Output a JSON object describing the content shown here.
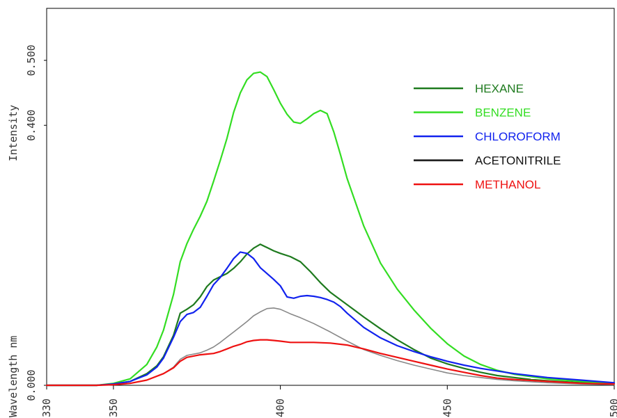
{
  "chart_data": {
    "type": "line",
    "title": "",
    "xlabel": "Wavelength nm",
    "ylabel": "Intensity",
    "xlim": [
      330,
      500
    ],
    "ylim": [
      0.0,
      0.58
    ],
    "x_ticks": [
      330,
      350,
      400,
      450,
      500
    ],
    "y_ticks": [
      0.0,
      0.4,
      0.5
    ],
    "x_tick_labels": [
      "330",
      "350",
      "400",
      "450",
      "500"
    ],
    "y_tick_labels": [
      "0.000",
      "0.400",
      "0.500"
    ],
    "grid": false,
    "legend_position": "top-right",
    "series": [
      {
        "name": "HEXANE",
        "color": "#1e7a1e",
        "x": [
          330,
          345,
          350,
          355,
          360,
          363,
          365,
          368,
          370,
          372,
          374,
          376,
          378,
          380,
          382,
          384,
          386,
          388,
          390,
          392,
          394,
          396,
          398,
          400,
          403,
          406,
          409,
          412,
          415,
          420,
          425,
          430,
          435,
          440,
          445,
          450,
          455,
          460,
          465,
          470,
          475,
          480,
          490,
          500
        ],
        "y": [
          0.0,
          0.0,
          0.002,
          0.006,
          0.018,
          0.03,
          0.044,
          0.077,
          0.111,
          0.117,
          0.124,
          0.136,
          0.152,
          0.162,
          0.167,
          0.172,
          0.18,
          0.19,
          0.202,
          0.211,
          0.217,
          0.212,
          0.207,
          0.203,
          0.198,
          0.19,
          0.175,
          0.158,
          0.143,
          0.124,
          0.105,
          0.087,
          0.07,
          0.055,
          0.042,
          0.033,
          0.026,
          0.02,
          0.015,
          0.012,
          0.009,
          0.007,
          0.004,
          0.002
        ]
      },
      {
        "name": "BENZENE",
        "color": "#33dd22",
        "x": [
          330,
          345,
          350,
          355,
          360,
          363,
          365,
          368,
          370,
          372,
          374,
          376,
          378,
          380,
          382,
          384,
          386,
          388,
          390,
          392,
          394,
          396,
          398,
          400,
          402,
          404,
          406,
          408,
          410,
          412,
          414,
          416,
          418,
          420,
          425,
          430,
          435,
          440,
          445,
          450,
          455,
          460,
          465,
          470,
          480,
          490,
          500
        ],
        "y": [
          0.0,
          0.0,
          0.003,
          0.01,
          0.032,
          0.059,
          0.085,
          0.14,
          0.19,
          0.218,
          0.24,
          0.26,
          0.283,
          0.314,
          0.346,
          0.38,
          0.42,
          0.45,
          0.47,
          0.48,
          0.482,
          0.475,
          0.455,
          0.434,
          0.417,
          0.405,
          0.403,
          0.41,
          0.418,
          0.423,
          0.418,
          0.39,
          0.355,
          0.318,
          0.245,
          0.188,
          0.148,
          0.116,
          0.088,
          0.064,
          0.045,
          0.032,
          0.023,
          0.017,
          0.01,
          0.006,
          0.003
        ]
      },
      {
        "name": "CHLOROFORM",
        "color": "#1122ee",
        "x": [
          330,
          345,
          350,
          355,
          360,
          363,
          365,
          368,
          370,
          372,
          374,
          376,
          378,
          380,
          382,
          384,
          386,
          388,
          390,
          392,
          394,
          396,
          398,
          400,
          402,
          404,
          406,
          408,
          410,
          412,
          414,
          416,
          418,
          420,
          425,
          430,
          435,
          440,
          445,
          450,
          455,
          460,
          465,
          470,
          480,
          490,
          500
        ],
        "y": [
          0.0,
          0.0,
          0.002,
          0.006,
          0.016,
          0.028,
          0.042,
          0.074,
          0.098,
          0.109,
          0.112,
          0.12,
          0.137,
          0.155,
          0.166,
          0.18,
          0.195,
          0.205,
          0.203,
          0.195,
          0.181,
          0.172,
          0.163,
          0.153,
          0.136,
          0.134,
          0.137,
          0.138,
          0.137,
          0.135,
          0.132,
          0.128,
          0.121,
          0.111,
          0.089,
          0.073,
          0.061,
          0.052,
          0.044,
          0.037,
          0.031,
          0.026,
          0.022,
          0.018,
          0.012,
          0.008,
          0.004
        ]
      },
      {
        "name": "ACETONITRILE",
        "color": "#888888",
        "x": [
          330,
          345,
          350,
          355,
          360,
          365,
          368,
          370,
          372,
          374,
          376,
          378,
          380,
          382,
          384,
          386,
          388,
          390,
          392,
          394,
          396,
          398,
          400,
          403,
          406,
          410,
          415,
          420,
          425,
          430,
          435,
          440,
          445,
          450,
          455,
          460,
          465,
          470,
          480,
          490,
          500
        ],
        "y": [
          0.0,
          0.0,
          0.001,
          0.003,
          0.008,
          0.018,
          0.028,
          0.04,
          0.046,
          0.048,
          0.05,
          0.054,
          0.059,
          0.066,
          0.074,
          0.082,
          0.09,
          0.098,
          0.107,
          0.113,
          0.118,
          0.119,
          0.117,
          0.11,
          0.104,
          0.095,
          0.082,
          0.068,
          0.055,
          0.046,
          0.038,
          0.031,
          0.025,
          0.019,
          0.015,
          0.012,
          0.009,
          0.007,
          0.004,
          0.002,
          0.001
        ]
      },
      {
        "name": "METHANOL",
        "color": "#ee1111",
        "x": [
          330,
          345,
          350,
          355,
          360,
          365,
          368,
          370,
          372,
          374,
          376,
          378,
          380,
          382,
          384,
          386,
          388,
          390,
          392,
          394,
          396,
          398,
          400,
          403,
          406,
          410,
          415,
          420,
          425,
          430,
          435,
          440,
          445,
          450,
          455,
          460,
          465,
          470,
          480,
          490,
          500
        ],
        "y": [
          0.0,
          0.0,
          0.001,
          0.003,
          0.008,
          0.018,
          0.027,
          0.037,
          0.043,
          0.045,
          0.047,
          0.048,
          0.049,
          0.052,
          0.056,
          0.06,
          0.063,
          0.067,
          0.069,
          0.07,
          0.07,
          0.069,
          0.068,
          0.066,
          0.066,
          0.066,
          0.065,
          0.062,
          0.056,
          0.049,
          0.043,
          0.037,
          0.031,
          0.025,
          0.02,
          0.015,
          0.011,
          0.009,
          0.006,
          0.003,
          0.002
        ]
      }
    ]
  }
}
